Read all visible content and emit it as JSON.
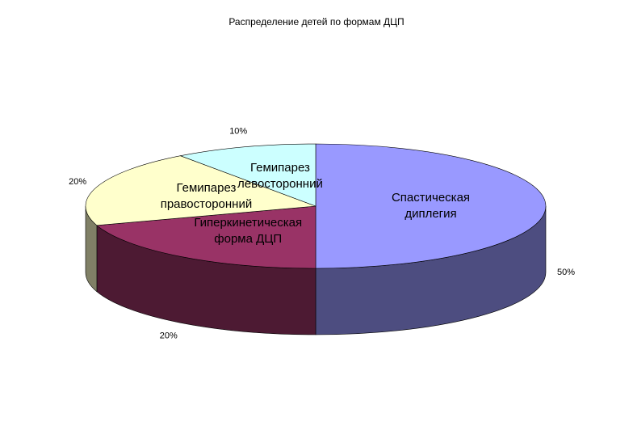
{
  "chart_data": {
    "type": "pie",
    "title": "Распределение детей по формам ДЦП",
    "categories": [
      "Спастическая диплегия",
      "Гиперкинетическая форма ДЦП",
      "Гемипарез правосторонний",
      "Гемипарез левосторонний"
    ],
    "values": [
      50,
      20,
      20,
      10
    ],
    "value_labels": [
      "50%",
      "20%",
      "20%",
      "10%"
    ],
    "colors": [
      "#9999ff",
      "#993366",
      "#ffffcc",
      "#ccffff"
    ]
  }
}
